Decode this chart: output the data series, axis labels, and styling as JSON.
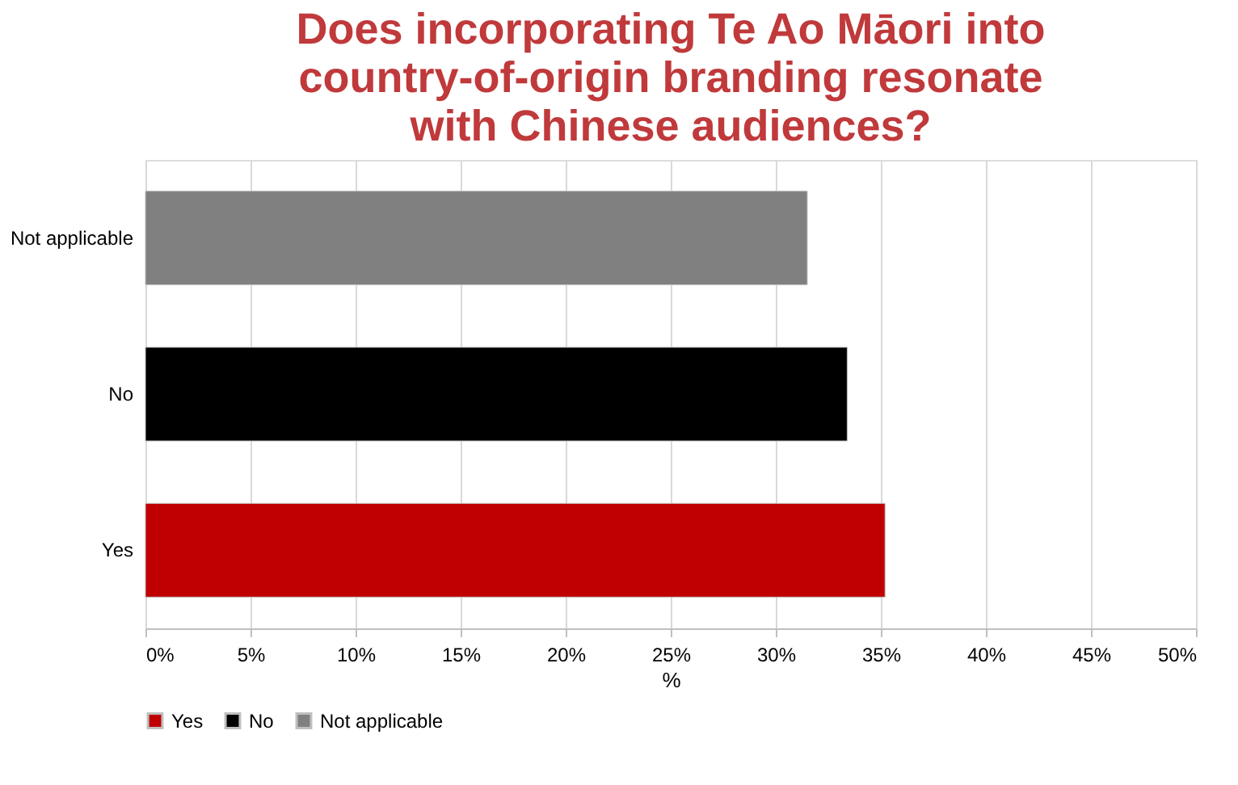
{
  "chart_data": {
    "type": "bar",
    "orientation": "horizontal",
    "title": "Does incorporating Te Ao Māori into country-of-origin branding resonate with Chinese audiences?",
    "xlabel": "%",
    "categories": [
      "Not applicable",
      "No",
      "Yes"
    ],
    "series": [
      {
        "name": "Yes",
        "color": "#c00000",
        "values": [
          null,
          null,
          35.2
        ]
      },
      {
        "name": "No",
        "color": "#000000",
        "values": [
          null,
          33.4,
          null
        ]
      },
      {
        "name": "Not applicable",
        "color": "#808080",
        "values": [
          31.5,
          null,
          null
        ]
      }
    ],
    "xlim": [
      0,
      50
    ],
    "xticks": [
      {
        "value": 0,
        "label": "0%"
      },
      {
        "value": 5,
        "label": "5%"
      },
      {
        "value": 10,
        "label": "10%"
      },
      {
        "value": 15,
        "label": "15%"
      },
      {
        "value": 20,
        "label": "20%"
      },
      {
        "value": 25,
        "label": "25%"
      },
      {
        "value": 30,
        "label": "30%"
      },
      {
        "value": 35,
        "label": "35%"
      },
      {
        "value": 40,
        "label": "40%"
      },
      {
        "value": 45,
        "label": "45%"
      },
      {
        "value": 50,
        "label": "50%"
      }
    ],
    "grid": "x",
    "legend": "bottom"
  }
}
